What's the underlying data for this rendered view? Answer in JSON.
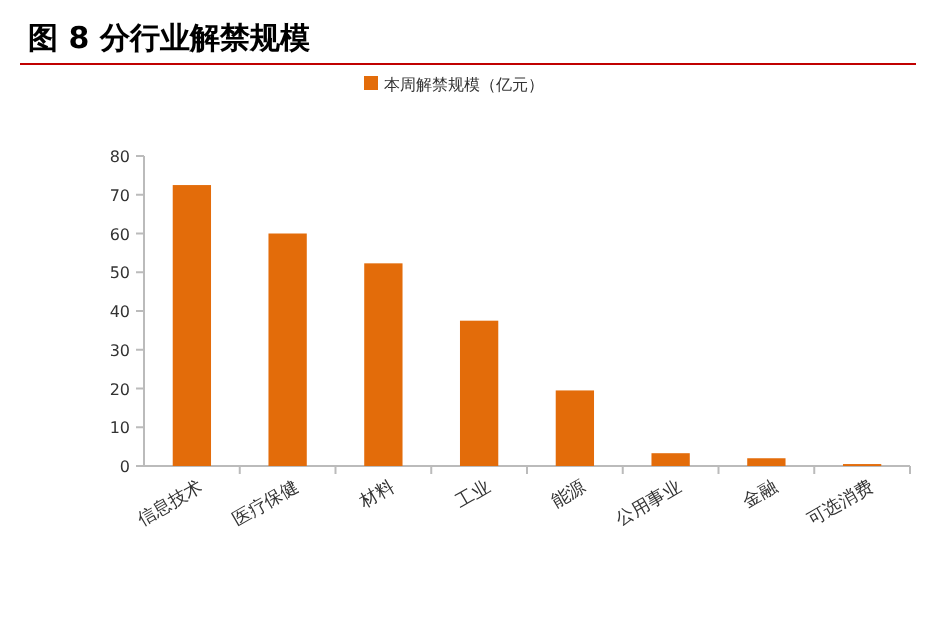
{
  "chart_data": {
    "type": "bar",
    "title": "图 8 分行业解禁规模",
    "categories": [
      "信息技术",
      "医疗保健",
      "材料",
      "工业",
      "能源",
      "公用事业",
      "金融",
      "可选消费"
    ],
    "series": [
      {
        "name": "本周解禁规模（亿元）",
        "color": "#e36c0a",
        "values": [
          72.5,
          60,
          52.3,
          37.5,
          19.5,
          3.3,
          2,
          0.5
        ]
      }
    ],
    "ylim": [
      0,
      80
    ],
    "yticks": [
      0,
      10,
      20,
      30,
      40,
      50,
      60,
      70,
      80
    ],
    "grid": false,
    "legend": "top"
  }
}
